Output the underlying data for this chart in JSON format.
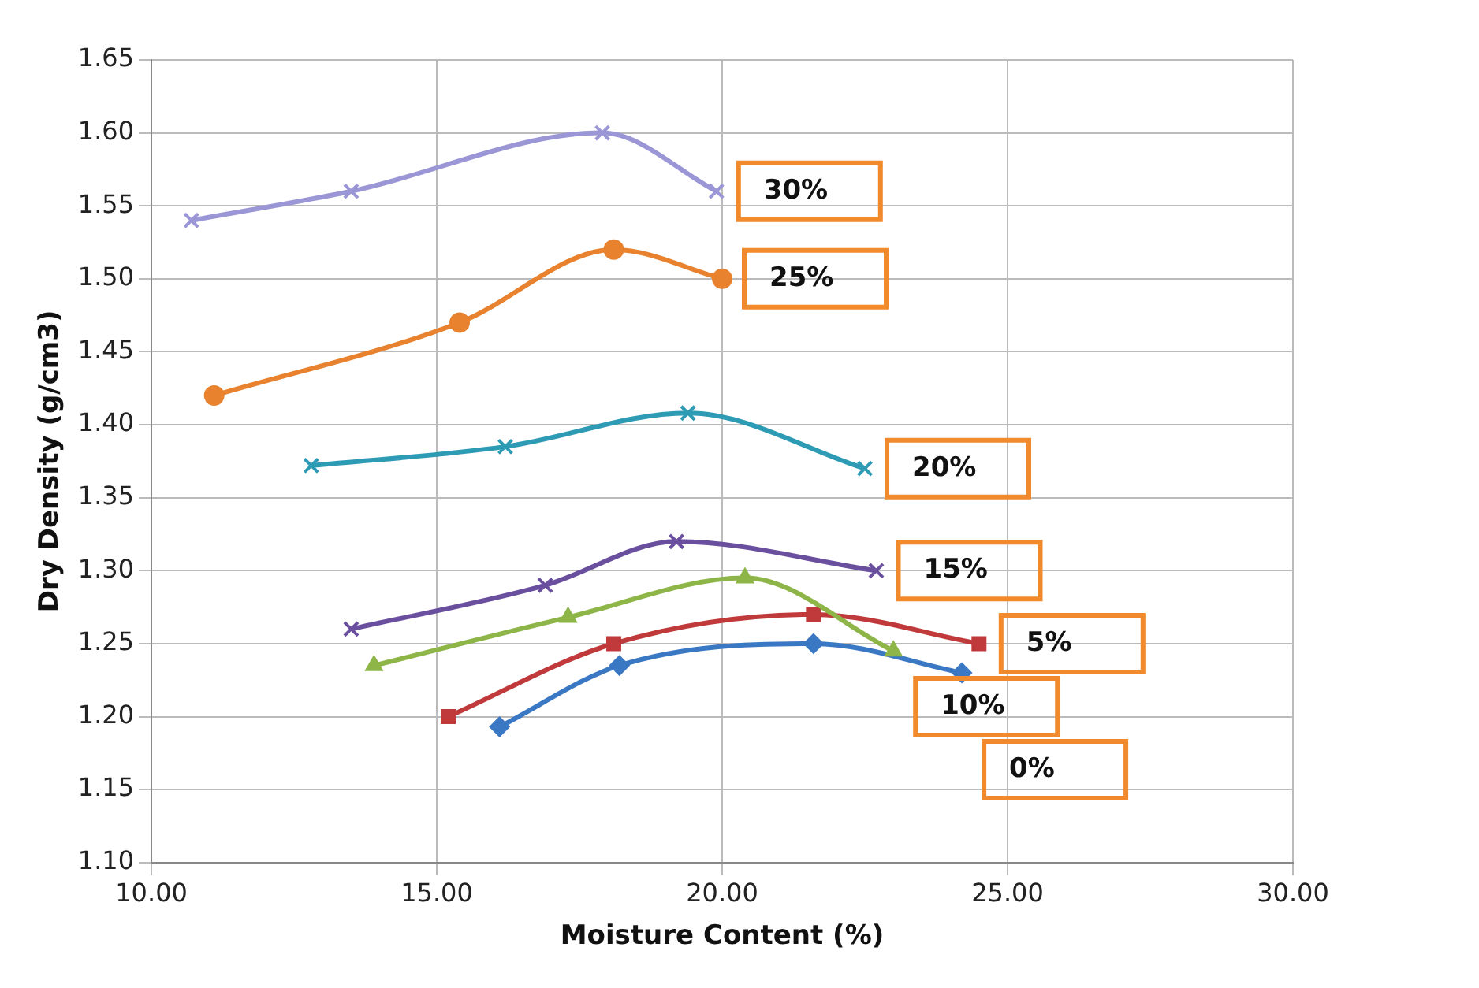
{
  "chart_data": {
    "type": "line",
    "xlabel": "Moisture Content (%)",
    "ylabel": "Dry Density (g/cm3)",
    "xlim": [
      10,
      30
    ],
    "xticks": [
      {
        "value": 10,
        "label": "10.00"
      },
      {
        "value": 15,
        "label": "15.00"
      },
      {
        "value": 20,
        "label": "20.00"
      },
      {
        "value": 25,
        "label": "25.00"
      },
      {
        "value": 30,
        "label": "30.00"
      }
    ],
    "ylim": [
      1.1,
      1.65
    ],
    "yticks": [
      {
        "value": 1.1,
        "label": "1.10"
      },
      {
        "value": 1.15,
        "label": "1.15"
      },
      {
        "value": 1.2,
        "label": "1.20"
      },
      {
        "value": 1.25,
        "label": "1.25"
      },
      {
        "value": 1.3,
        "label": "1.30"
      },
      {
        "value": 1.35,
        "label": "1.35"
      },
      {
        "value": 1.4,
        "label": "1.40"
      },
      {
        "value": 1.45,
        "label": "1.45"
      },
      {
        "value": 1.5,
        "label": "1.50"
      },
      {
        "value": 1.55,
        "label": "1.55"
      },
      {
        "value": 1.6,
        "label": "1.60"
      },
      {
        "value": 1.65,
        "label": "1.65"
      }
    ],
    "grid": true,
    "legend": false,
    "series": [
      {
        "name": "30%",
        "color": "#9b97d6",
        "marker": "cross",
        "x": [
          10.7,
          13.5,
          17.9,
          19.9
        ],
        "values": [
          1.54,
          1.56,
          1.6,
          1.56
        ]
      },
      {
        "name": "25%",
        "color": "#e8822e",
        "marker": "circle",
        "x": [
          11.1,
          15.4,
          18.1,
          20.0
        ],
        "values": [
          1.42,
          1.47,
          1.52,
          1.5
        ]
      },
      {
        "name": "20%",
        "color": "#2e9bb5",
        "marker": "cross",
        "x": [
          12.8,
          16.2,
          19.4,
          22.5
        ],
        "values": [
          1.372,
          1.385,
          1.408,
          1.37
        ]
      },
      {
        "name": "15%",
        "color": "#6a4f9e",
        "marker": "cross",
        "x": [
          13.5,
          16.9,
          19.2,
          22.7
        ],
        "values": [
          1.26,
          1.29,
          1.32,
          1.3
        ]
      },
      {
        "name": "10%",
        "color": "#8db548",
        "marker": "triangle",
        "x": [
          13.9,
          17.3,
          20.4,
          23.0
        ],
        "values": [
          1.235,
          1.268,
          1.295,
          1.245
        ]
      },
      {
        "name": "5%",
        "color": "#c0393b",
        "marker": "square",
        "x": [
          15.2,
          18.1,
          21.6,
          24.5
        ],
        "values": [
          1.2,
          1.25,
          1.27,
          1.25
        ]
      },
      {
        "name": "0%",
        "color": "#3b78c4",
        "marker": "diamond",
        "x": [
          16.1,
          18.2,
          21.6,
          24.2
        ],
        "values": [
          1.193,
          1.235,
          1.25,
          1.23
        ]
      }
    ]
  }
}
